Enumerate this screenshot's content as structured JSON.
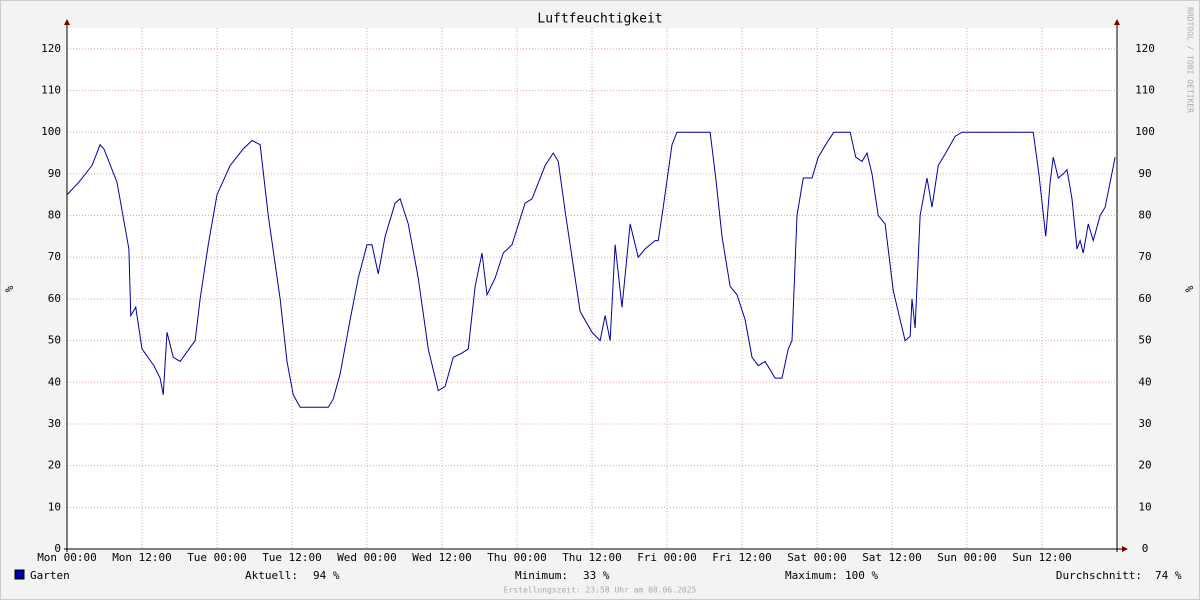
{
  "chart_data": {
    "type": "line",
    "title": "Luftfeuchtigkeit",
    "y_label": "%",
    "watermark": "RRDTOOL / TOBI OETIKER",
    "footer": "Erstellungszeit: 23:58 Uhr am 08.06.2025",
    "x": [
      0,
      1.9,
      4,
      5.3,
      5.9,
      8,
      9.9,
      10.2,
      11,
      12,
      13.9,
      14.9,
      15.4,
      16,
      17,
      18.1,
      20.5,
      21.3,
      22.6,
      24,
      26.1,
      28.2,
      29.6,
      30.9,
      32.2,
      34.1,
      35.2,
      36.2,
      37.3,
      39.7,
      41.8,
      42.6,
      43.7,
      45.3,
      46.6,
      48,
      48.8,
      49.8,
      50.9,
      52.5,
      53.3,
      54.6,
      56.2,
      57.8,
      59.4,
      60.5,
      61.8,
      63.2,
      64.2,
      65.3,
      66.4,
      67.2,
      68.5,
      69.8,
      71.2,
      73.3,
      74.4,
      76.5,
      77.8,
      78.6,
      79.8,
      80.8,
      82.1,
      84,
      85.3,
      86.1,
      86.9,
      87.7,
      88.8,
      90.1,
      91.4,
      92.5,
      94.1,
      94.6,
      95.4,
      96.8,
      97.6,
      102.9,
      103.8,
      104.8,
      106.1,
      107.2,
      108.5,
      109.6,
      110.6,
      111.7,
      113.3,
      114.4,
      115.4,
      116,
      116.8,
      117.8,
      119.2,
      120.2,
      121.8,
      122.7,
      125.3,
      126.2,
      127.2,
      128,
      128.8,
      129.8,
      130.9,
      132.2,
      133.3,
      134.1,
      134.9,
      135.2,
      135.7,
      136.5,
      137.6,
      138.4,
      139.4,
      140.6,
      142.1,
      143.2,
      154.6,
      155.5,
      156.6,
      157.3,
      157.8,
      158.6,
      159.4,
      160,
      160.8,
      161.6,
      162.1,
      162.6,
      163.4,
      164.2,
      165.3,
      166.1,
      166.9,
      167.7
    ],
    "series": [
      {
        "name": "Garten",
        "color": "#0000a0",
        "values": [
          85,
          88,
          92,
          97,
          96,
          88,
          72,
          56,
          58,
          48,
          44,
          41,
          37,
          52,
          46,
          45,
          50,
          60,
          73,
          85,
          92,
          96,
          98,
          97,
          80,
          60,
          45,
          37,
          34,
          34,
          34,
          36,
          42,
          55,
          65,
          73,
          73,
          66,
          75,
          83,
          84,
          78,
          65,
          48,
          38,
          39,
          46,
          47,
          48,
          63,
          71,
          61,
          65,
          71,
          73,
          83,
          84,
          92,
          95,
          93,
          80,
          70,
          57,
          52,
          50,
          56,
          50,
          73,
          58,
          78,
          70,
          72,
          74,
          74,
          82,
          97,
          100,
          100,
          89,
          75,
          63,
          61,
          55,
          46,
          44,
          45,
          41,
          41,
          48,
          50,
          80,
          89,
          89,
          94,
          98,
          100,
          100,
          94,
          93,
          95,
          90,
          80,
          78,
          62,
          55,
          50,
          51,
          60,
          53,
          80,
          89,
          82,
          92,
          95,
          99,
          100,
          100,
          90,
          75,
          88,
          94,
          89,
          90,
          91,
          84,
          72,
          74,
          71,
          78,
          74,
          80,
          82,
          88,
          94
        ]
      }
    ],
    "xlim": [
      0,
      168
    ],
    "xticks": [
      {
        "value": 0,
        "label": "Mon 00:00"
      },
      {
        "value": 12,
        "label": "Mon 12:00"
      },
      {
        "value": 24,
        "label": "Tue 00:00"
      },
      {
        "value": 36,
        "label": "Tue 12:00"
      },
      {
        "value": 48,
        "label": "Wed 00:00"
      },
      {
        "value": 60,
        "label": "Wed 12:00"
      },
      {
        "value": 72,
        "label": "Thu 00:00"
      },
      {
        "value": 84,
        "label": "Thu 12:00"
      },
      {
        "value": 96,
        "label": "Fri 00:00"
      },
      {
        "value": 108,
        "label": "Fri 12:00"
      },
      {
        "value": 120,
        "label": "Sat 00:00"
      },
      {
        "value": 132,
        "label": "Sat 12:00"
      },
      {
        "value": 144,
        "label": "Sun 00:00"
      },
      {
        "value": 156,
        "label": "Sun 12:00"
      }
    ],
    "ylim": [
      0,
      125
    ],
    "yticks": [
      0,
      10,
      20,
      30,
      40,
      50,
      60,
      70,
      80,
      90,
      100,
      110,
      120
    ],
    "grid": true,
    "legend": {
      "current_label": "Aktuell:",
      "current": "94 %",
      "min_label": "Minimum:",
      "min": "33 %",
      "max_label": "Maximum:",
      "max": "100 %",
      "avg_label": "Durchschnitt:",
      "avg": "74 %"
    }
  }
}
